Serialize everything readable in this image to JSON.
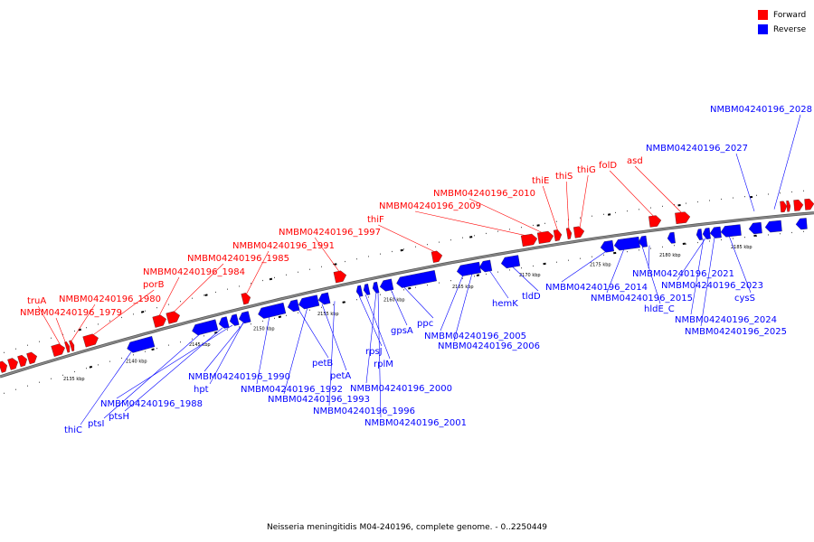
{
  "caption": "Neisseria meningitidis M04-240196, complete genome. - 0..2250449",
  "legend": [
    {
      "label": "Forward",
      "color": "#ff0000"
    },
    {
      "label": "Reverse",
      "color": "#0000ff"
    }
  ],
  "colors": {
    "forward": "#ff0000",
    "reverse": "#0000ff",
    "backbone": "#8c8c8c"
  },
  "ticks": [
    "2135 kbp",
    "2140 kbp",
    "2145 kbp",
    "2150 kbp",
    "2155 kbp",
    "2160 kbp",
    "2165 kbp",
    "2170 kbp",
    "2175 kbp",
    "2180 kbp",
    "2185 kbp"
  ],
  "forward_labels": [
    "truA",
    "NMBM04240196_1979",
    "NMBM04240196_1980",
    "porB",
    "NMBM04240196_1984",
    "NMBM04240196_1985",
    "NMBM04240196_1991",
    "NMBM04240196_1997",
    "thiF",
    "NMBM04240196_2009",
    "NMBM04240196_2010",
    "thiE",
    "thiS",
    "thiG",
    "folD",
    "asd"
  ],
  "reverse_labels": [
    "thiC",
    "ptsI",
    "ptsH",
    "NMBM04240196_1988",
    "hpt",
    "NMBM04240196_1990",
    "NMBM04240196_1992",
    "NMBM04240196_1993",
    "petB",
    "petA",
    "NMBM04240196_1996",
    "rpsJ",
    "rplM",
    "NMBM04240196_2000",
    "NMBM04240196_2001",
    "gpsA",
    "ppc",
    "NMBM04240196_2005",
    "NMBM04240196_2006",
    "hemK",
    "tldD",
    "NMBM04240196_2014",
    "NMBM04240196_2015",
    "hldE_C",
    "NMBM04240196_2021",
    "NMBM04240196_2023",
    "cysS",
    "NMBM04240196_2024",
    "NMBM04240196_2025",
    "NMBM04240196_2027",
    "NMBM04240196_2028"
  ]
}
